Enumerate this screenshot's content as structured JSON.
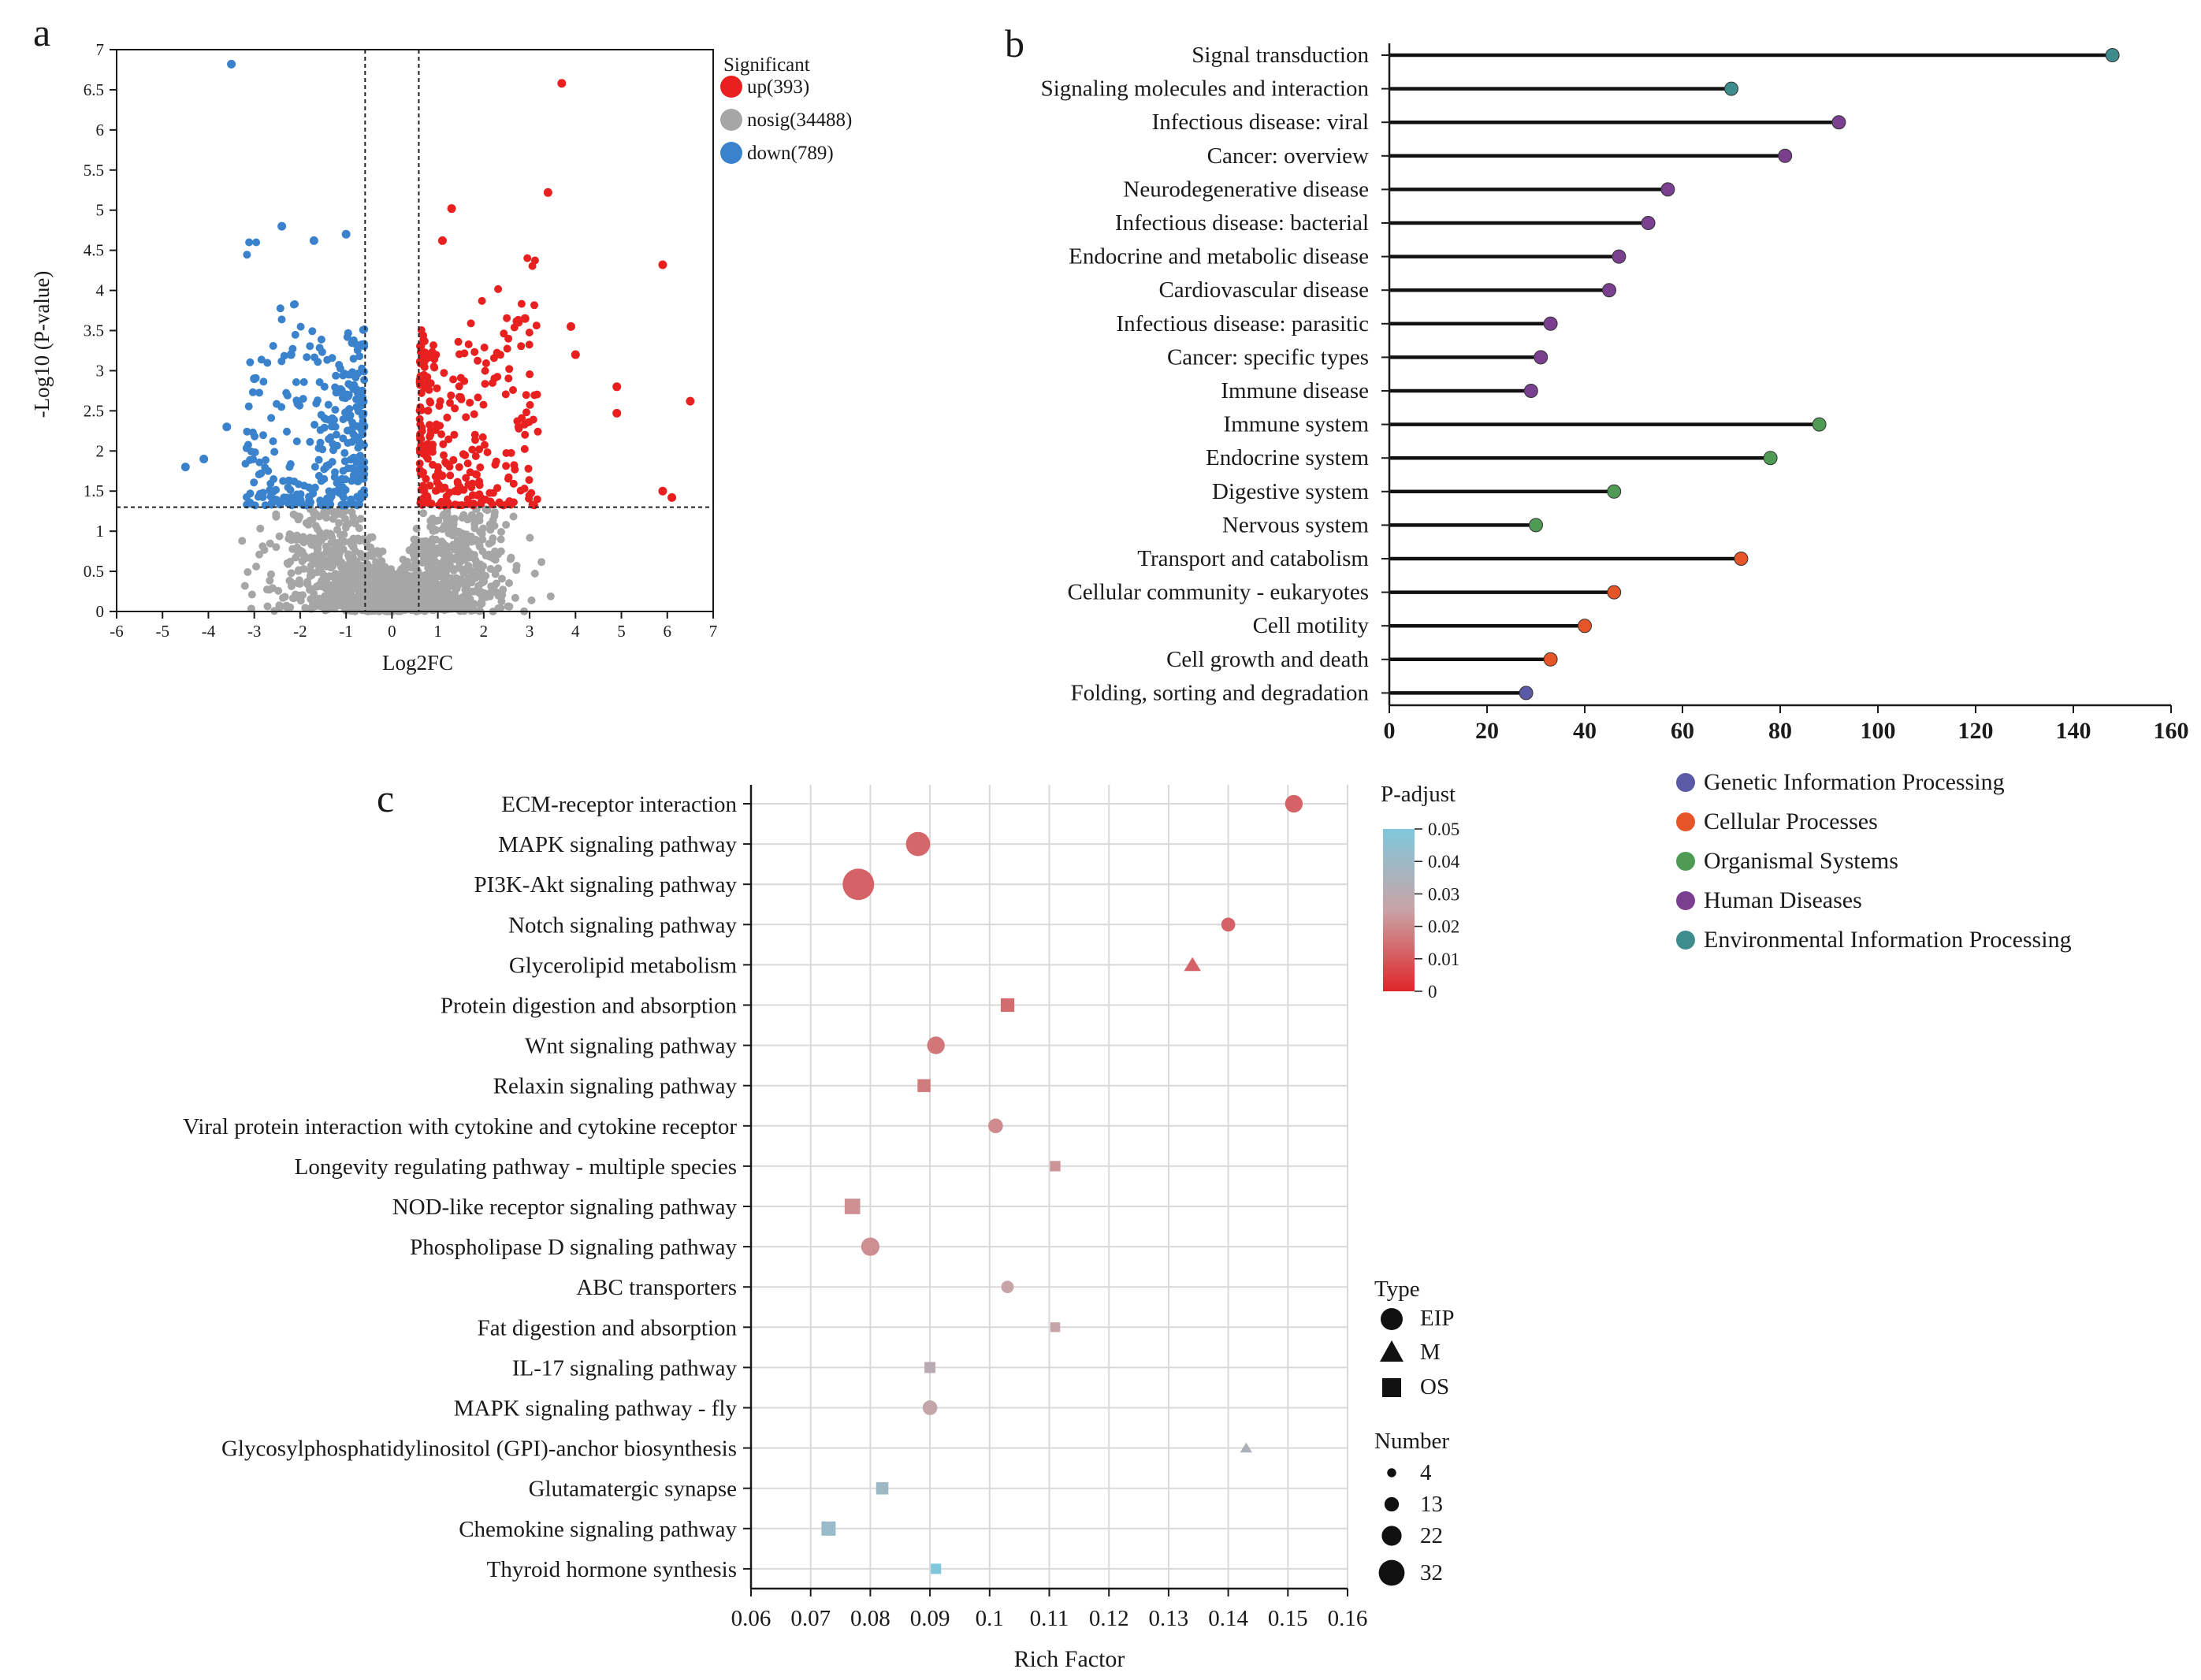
{
  "panel_labels": {
    "a": "a",
    "b": "b",
    "c": "c"
  },
  "colors": {
    "up": "#e8201f",
    "nosig": "#a6a6a6",
    "down": "#3a82cc",
    "axis": "#1a1a1a",
    "genetic": "#5a5aa6",
    "cellular": "#e55527",
    "organismal": "#4f9b55",
    "human": "#7b3f8f",
    "environmental": "#3f8c8c",
    "padj_low": "#e0262a",
    "padj_mid": "#c9a3a6",
    "padj_high": "#7fc8dc"
  },
  "chart_data": [
    {
      "id": "volcano",
      "type": "scatter",
      "title": "",
      "xlabel": "Log2FC",
      "ylabel": "-Log10 (P-value)",
      "xlim": [
        -6,
        7
      ],
      "ylim": [
        0,
        7
      ],
      "xticks": [
        -6,
        -5,
        -4,
        -3,
        -2,
        -1,
        0,
        1,
        2,
        3,
        4,
        5,
        6,
        7
      ],
      "yticks": [
        0,
        0.5,
        1,
        1.5,
        2,
        2.5,
        3,
        3.5,
        4,
        4.5,
        5,
        5.5,
        6,
        6.5,
        7
      ],
      "thresholds": {
        "fc": [
          -0.585,
          0.585
        ],
        "p": 1.3
      },
      "legend_title": "Significant",
      "legend": [
        {
          "key": "up",
          "label": "up(393)"
        },
        {
          "key": "nosig",
          "label": "nosig(34488)"
        },
        {
          "key": "down",
          "label": "down(789)"
        }
      ],
      "counts": {
        "up": 393,
        "nosig": 34488,
        "down": 789
      },
      "highlight_points": [
        {
          "x": -3.5,
          "y": 6.82,
          "group": "down"
        },
        {
          "x": -2.4,
          "y": 4.8,
          "group": "down"
        },
        {
          "x": -1.7,
          "y": 4.62,
          "group": "down"
        },
        {
          "x": -1.0,
          "y": 4.7,
          "group": "down"
        },
        {
          "x": -4.5,
          "y": 1.8,
          "group": "down"
        },
        {
          "x": -4.1,
          "y": 1.9,
          "group": "down"
        },
        {
          "x": -3.6,
          "y": 2.3,
          "group": "down"
        },
        {
          "x": -3.0,
          "y": 2.9,
          "group": "down"
        },
        {
          "x": -2.2,
          "y": 3.2,
          "group": "down"
        },
        {
          "x": 3.7,
          "y": 6.58,
          "group": "up"
        },
        {
          "x": 3.4,
          "y": 5.22,
          "group": "up"
        },
        {
          "x": 1.3,
          "y": 5.02,
          "group": "up"
        },
        {
          "x": 1.1,
          "y": 4.62,
          "group": "up"
        },
        {
          "x": 5.9,
          "y": 4.32,
          "group": "up"
        },
        {
          "x": 2.9,
          "y": 3.65,
          "group": "up"
        },
        {
          "x": 3.9,
          "y": 3.55,
          "group": "up"
        },
        {
          "x": 4.0,
          "y": 3.2,
          "group": "up"
        },
        {
          "x": 4.9,
          "y": 2.8,
          "group": "up"
        },
        {
          "x": 4.9,
          "y": 2.47,
          "group": "up"
        },
        {
          "x": 6.5,
          "y": 2.62,
          "group": "up"
        },
        {
          "x": 6.1,
          "y": 1.42,
          "group": "up"
        },
        {
          "x": 5.9,
          "y": 1.5,
          "group": "up"
        }
      ]
    },
    {
      "id": "kegg_classification",
      "type": "lollipop",
      "title": "",
      "xlabel": "",
      "xlim": [
        0,
        160
      ],
      "xticks": [
        0,
        20,
        40,
        60,
        80,
        100,
        120,
        140,
        160
      ],
      "categories": [
        "Signal transduction",
        "Signaling molecules and interaction",
        "Infectious disease: viral",
        "Cancer: overview",
        "Neurodegenerative disease",
        "Infectious disease: bacterial",
        "Endocrine and metabolic disease",
        "Cardiovascular disease",
        "Infectious disease: parasitic",
        "Cancer: specific types",
        "Immune disease",
        "Immune system",
        "Endocrine system",
        "Digestive system",
        "Nervous system",
        "Transport and catabolism",
        "Cellular community - eukaryotes",
        "Cell motility",
        "Cell growth and death",
        "Folding, sorting and degradation"
      ],
      "values": [
        148,
        70,
        92,
        81,
        57,
        53,
        47,
        45,
        33,
        31,
        29,
        88,
        78,
        46,
        30,
        72,
        46,
        40,
        33,
        28
      ],
      "groups": [
        "environmental",
        "environmental",
        "human",
        "human",
        "human",
        "human",
        "human",
        "human",
        "human",
        "human",
        "human",
        "organismal",
        "organismal",
        "organismal",
        "organismal",
        "cellular",
        "cellular",
        "cellular",
        "cellular",
        "genetic"
      ],
      "legend": [
        {
          "key": "genetic",
          "label": "Genetic Information Processing"
        },
        {
          "key": "cellular",
          "label": "Cellular Processes"
        },
        {
          "key": "organismal",
          "label": "Organismal Systems"
        },
        {
          "key": "human",
          "label": "Human Diseases"
        },
        {
          "key": "environmental",
          "label": "Environmental Information Processing"
        }
      ]
    },
    {
      "id": "kegg_enrichment",
      "type": [
        "EIP",
        "EIP",
        "EIP",
        "EIP",
        "M",
        "OS",
        "EIP",
        "OS",
        "EIP",
        "OS",
        "OS",
        "EIP",
        "EIP",
        "OS",
        "OS",
        "EIP",
        "M",
        "OS",
        "OS",
        "OS"
      ],
      "title": "",
      "xlabel": "Rich Factor",
      "ylabel": "",
      "xlim": [
        0.06,
        0.16
      ],
      "xticks": [
        0.06,
        0.07,
        0.08,
        0.09,
        0.1,
        0.11,
        0.12,
        0.13,
        0.14,
        0.15,
        0.16
      ],
      "xtick_labels": [
        "0.06",
        "0.07",
        "0.08",
        "0.09",
        "0.1",
        "0.11",
        "0.12",
        "0.13",
        "0.14",
        "0.15",
        "0.16"
      ],
      "categories": [
        "ECM-receptor interaction",
        "MAPK signaling pathway",
        "PI3K-Akt signaling pathway",
        "Notch signaling pathway",
        "Glycerolipid metabolism",
        "Protein digestion and absorption",
        "Wnt signaling pathway",
        "Relaxin signaling pathway",
        "Viral protein interaction with cytokine and cytokine receptor",
        "Longevity regulating pathway - multiple species",
        "NOD-like receptor signaling pathway",
        "Phospholipase D signaling pathway",
        "ABC transporters",
        "Fat digestion and absorption",
        "IL-17 signaling pathway",
        "MAPK signaling pathway - fly",
        "Glycosylphosphatidylinositol (GPI)-anchor biosynthesis",
        "Glutamatergic synapse",
        "Chemokine signaling pathway",
        "Thyroid hormone synthesis"
      ],
      "rich_factor": [
        0.151,
        0.088,
        0.078,
        0.14,
        0.134,
        0.103,
        0.091,
        0.089,
        0.101,
        0.111,
        0.077,
        0.08,
        0.103,
        0.111,
        0.09,
        0.09,
        0.143,
        0.082,
        0.073,
        0.091
      ],
      "p_adjust": [
        0.012,
        0.013,
        0.012,
        0.012,
        0.012,
        0.014,
        0.016,
        0.017,
        0.02,
        0.022,
        0.021,
        0.021,
        0.026,
        0.026,
        0.03,
        0.027,
        0.034,
        0.04,
        0.041,
        0.05
      ],
      "number": [
        13,
        22,
        32,
        8,
        10,
        10,
        13,
        9,
        9,
        5,
        13,
        14,
        6,
        4,
        6,
        9,
        4,
        8,
        11,
        5
      ],
      "color_legend": {
        "title": "P-adjust",
        "min": 0,
        "max": 0.05,
        "ticks": [
          "0.05",
          "0.04",
          "0.03",
          "0.02",
          "0.01",
          "0"
        ]
      },
      "type_legend": {
        "title": "Type",
        "items": [
          "EIP",
          "M",
          "OS"
        ]
      },
      "size_legend": {
        "title": "Number",
        "items": [
          "4",
          "13",
          "22",
          "32"
        ]
      }
    }
  ]
}
